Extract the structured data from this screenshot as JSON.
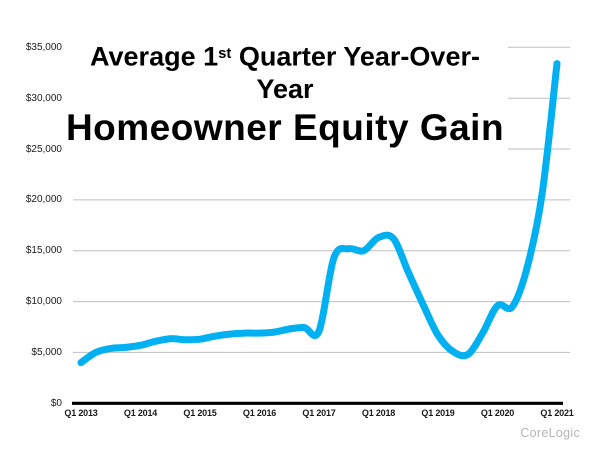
{
  "page": {
    "background": "#ffffff"
  },
  "title": {
    "line1_prefix": "Average 1",
    "line1_sup": "st",
    "line1_suffix": " Quarter Year-Over-Year",
    "line2": "Homeowner Equity Gain"
  },
  "attribution": "CoreLogic",
  "colors": {
    "line": "#00B0F0",
    "gridline": "#BFBFBF",
    "axis": "#000000",
    "tick_text": "#1A1A1A",
    "attribution_text": "#B5B5B5"
  },
  "chart_data": {
    "type": "line",
    "title": "Average 1st Quarter Year-Over-Year Homeowner Equity Gain",
    "source": "CoreLogic",
    "grid": true,
    "legend": false,
    "smooth": true,
    "line_color": "#00B0F0",
    "ylim": [
      0,
      35000
    ],
    "x": [
      "Q1 2013",
      "Q2 2013",
      "Q3 2013",
      "Q4 2013",
      "Q1 2014",
      "Q2 2014",
      "Q3 2014",
      "Q4 2014",
      "Q1 2015",
      "Q2 2015",
      "Q3 2015",
      "Q4 2015",
      "Q1 2016",
      "Q2 2016",
      "Q3 2016",
      "Q4 2016",
      "Q1 2017",
      "Q2 2017",
      "Q3 2017",
      "Q4 2017",
      "Q1 2018",
      "Q2 2018",
      "Q3 2018",
      "Q4 2018",
      "Q1 2019",
      "Q2 2019",
      "Q3 2019",
      "Q4 2019",
      "Q1 2020",
      "Q2 2020",
      "Q3 2020",
      "Q4 2020",
      "Q1 2021"
    ],
    "values": [
      4000,
      5000,
      5400,
      5500,
      5700,
      6100,
      6350,
      6250,
      6300,
      6600,
      6800,
      6900,
      6900,
      7000,
      7300,
      7450,
      7100,
      14300,
      15200,
      15000,
      16300,
      16200,
      12900,
      9700,
      6700,
      5100,
      4800,
      6900,
      9600,
      9500,
      13400,
      20600,
      33400
    ],
    "x_tick_labels": [
      "Q1 2013",
      "Q1 2014",
      "Q1 2015",
      "Q1 2016",
      "Q1 2017",
      "Q1 2018",
      "Q1 2019",
      "Q1 2020",
      "Q1 2021"
    ],
    "y_ticks": [
      {
        "label": "$0",
        "value": 0
      },
      {
        "label": "$5,000",
        "value": 5000
      },
      {
        "label": "$10,000",
        "value": 10000
      },
      {
        "label": "$15,000",
        "value": 15000
      },
      {
        "label": "$20,000",
        "value": 20000
      },
      {
        "label": "$25,000",
        "value": 25000
      },
      {
        "label": "$30,000",
        "value": 30000
      },
      {
        "label": "$35,000",
        "value": 35000
      }
    ]
  }
}
